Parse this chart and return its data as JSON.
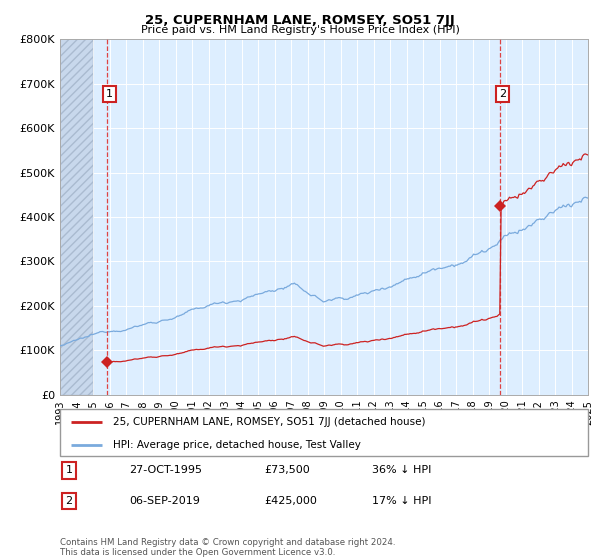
{
  "title": "25, CUPERNHAM LANE, ROMSEY, SO51 7JJ",
  "subtitle": "Price paid vs. HM Land Registry's House Price Index (HPI)",
  "hpi_color": "#7aaadd",
  "price_color": "#cc2222",
  "background_chart": "#ddeeff",
  "ylim": [
    0,
    800000
  ],
  "yticks": [
    0,
    100000,
    200000,
    300000,
    400000,
    500000,
    600000,
    700000,
    800000
  ],
  "xstart_year": 1993,
  "xend_year": 2025,
  "sale1_year": 1995.83,
  "sale1_price": 73500,
  "sale2_year": 2019.67,
  "sale2_price": 425000,
  "legend_price_label": "25, CUPERNHAM LANE, ROMSEY, SO51 7JJ (detached house)",
  "legend_hpi_label": "HPI: Average price, detached house, Test Valley",
  "note1_num": "1",
  "note1_date": "27-OCT-1995",
  "note1_price": "£73,500",
  "note1_hpi": "36% ↓ HPI",
  "note2_num": "2",
  "note2_date": "06-SEP-2019",
  "note2_price": "£425,000",
  "note2_hpi": "17% ↓ HPI",
  "copyright": "Contains HM Land Registry data © Crown copyright and database right 2024.\nThis data is licensed under the Open Government Licence v3.0."
}
